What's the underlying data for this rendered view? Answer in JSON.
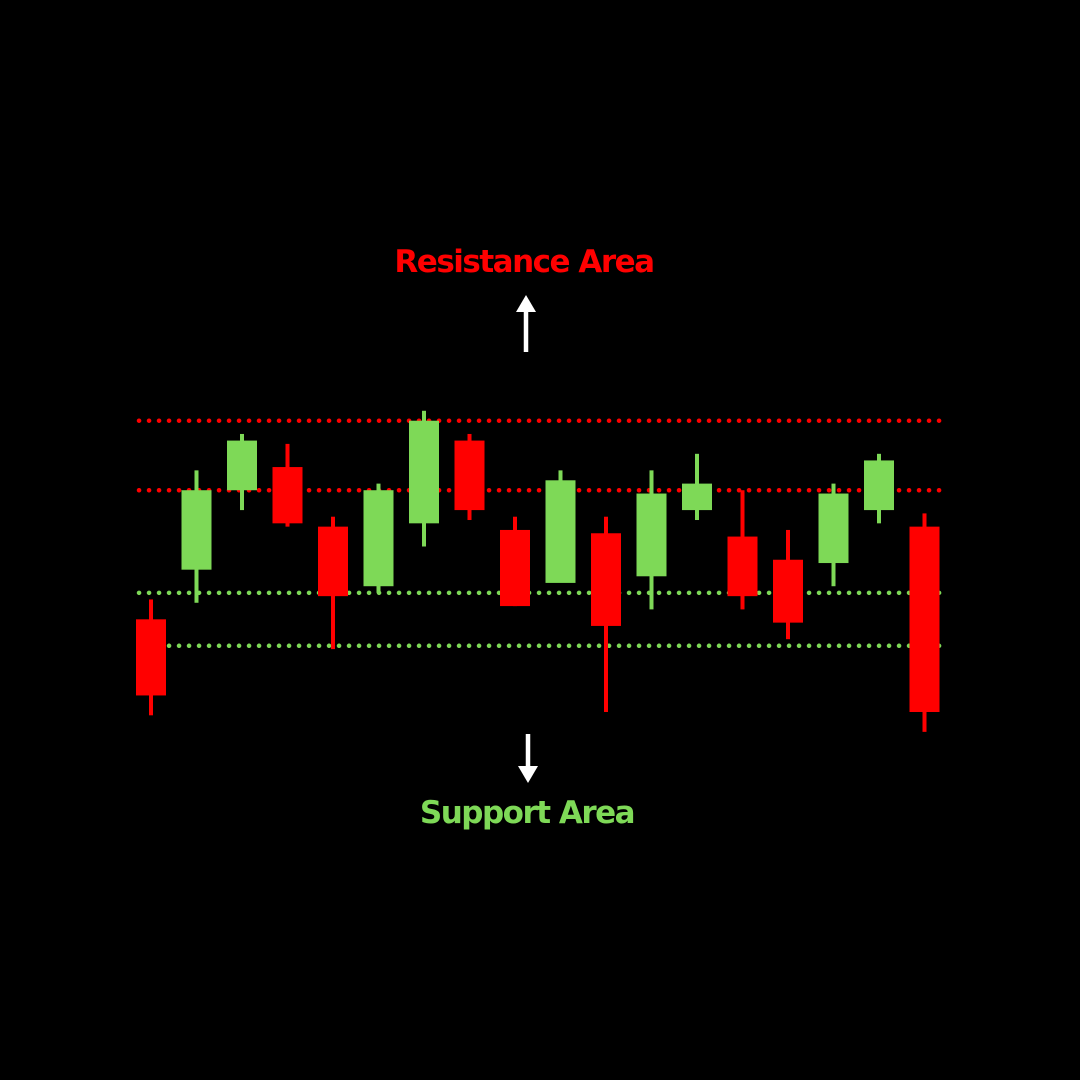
{
  "colors": {
    "background": "#000000",
    "bullish": "#7ED957",
    "bearish": "#FF0000",
    "arrow": "#FFFFFF",
    "resistance": "#FF0000",
    "support": "#7ED957"
  },
  "labels": {
    "resistance": "Resistance Area",
    "support": "Support Area"
  },
  "chart_data": {
    "type": "candlestick",
    "title": "",
    "xlabel": "",
    "ylabel": "",
    "ylim": [
      0,
      100
    ],
    "grid": false,
    "candles": [
      {
        "open": 28,
        "close": 5,
        "high": 34,
        "low": -1
      },
      {
        "open": 43,
        "close": 67,
        "high": 73,
        "low": 33
      },
      {
        "open": 67,
        "close": 82,
        "high": 84,
        "low": 61
      },
      {
        "open": 74,
        "close": 57,
        "high": 81,
        "low": 56
      },
      {
        "open": 56,
        "close": 35,
        "high": 59,
        "low": 19
      },
      {
        "open": 38,
        "close": 67,
        "high": 69,
        "low": 36
      },
      {
        "open": 57,
        "close": 88,
        "high": 91,
        "low": 50
      },
      {
        "open": 82,
        "close": 61,
        "high": 84,
        "low": 58
      },
      {
        "open": 55,
        "close": 32,
        "high": 59,
        "low": 32
      },
      {
        "open": 39,
        "close": 70,
        "high": 73,
        "low": 40
      },
      {
        "open": 54,
        "close": 26,
        "high": 59,
        "low": 0
      },
      {
        "open": 41,
        "close": 66,
        "high": 73,
        "low": 31
      },
      {
        "open": 61,
        "close": 69,
        "high": 78,
        "low": 58
      },
      {
        "open": 53,
        "close": 35,
        "high": 67,
        "low": 31
      },
      {
        "open": 46,
        "close": 27,
        "high": 55,
        "low": 22
      },
      {
        "open": 45,
        "close": 66,
        "high": 69,
        "low": 38
      },
      {
        "open": 61,
        "close": 76,
        "high": 78,
        "low": 57
      },
      {
        "open": 56,
        "close": 0,
        "high": 60,
        "low": -6
      }
    ],
    "resistance_levels": [
      88,
      67
    ],
    "support_levels": [
      36,
      20
    ]
  }
}
